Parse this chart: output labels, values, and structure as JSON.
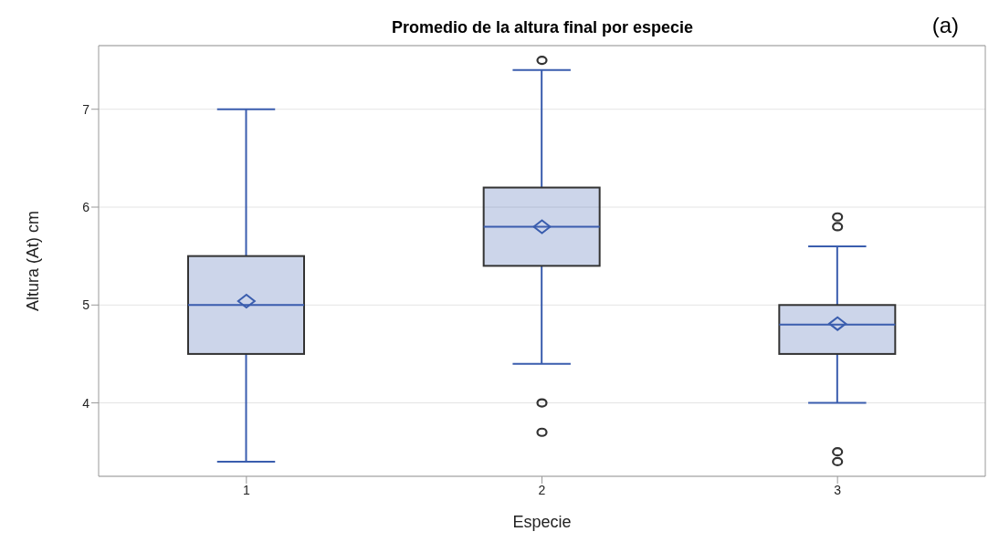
{
  "chart_data": {
    "type": "box",
    "title": "Promedio de la altura final por especie",
    "xlabel": "Especie",
    "ylabel": "Altura (At) cm",
    "annotations": [
      "(a)"
    ],
    "categories": [
      "1",
      "2",
      "3"
    ],
    "ylim": [
      3.25,
      7.65
    ],
    "yticks": [
      4,
      5,
      6,
      7
    ],
    "grid": "y",
    "legend": false,
    "series": [
      {
        "color": "#3a5dae",
        "boxes": [
          {
            "low": 3.4,
            "q1": 4.5,
            "median": 5,
            "q3": 5.5,
            "high": 7,
            "mean": 5.04
          },
          {
            "low": 4.4,
            "q1": 5.4,
            "median": 5.8,
            "q3": 6.2,
            "high": 7.4,
            "mean": 5.8,
            "outliers": [
              7.5,
              4,
              3.7
            ]
          },
          {
            "low": 4,
            "q1": 4.5,
            "median": 4.8,
            "q3": 5,
            "high": 5.6,
            "mean": 4.81,
            "outliers": [
              5.9,
              5.8,
              3.5,
              3.4
            ]
          }
        ]
      }
    ]
  }
}
